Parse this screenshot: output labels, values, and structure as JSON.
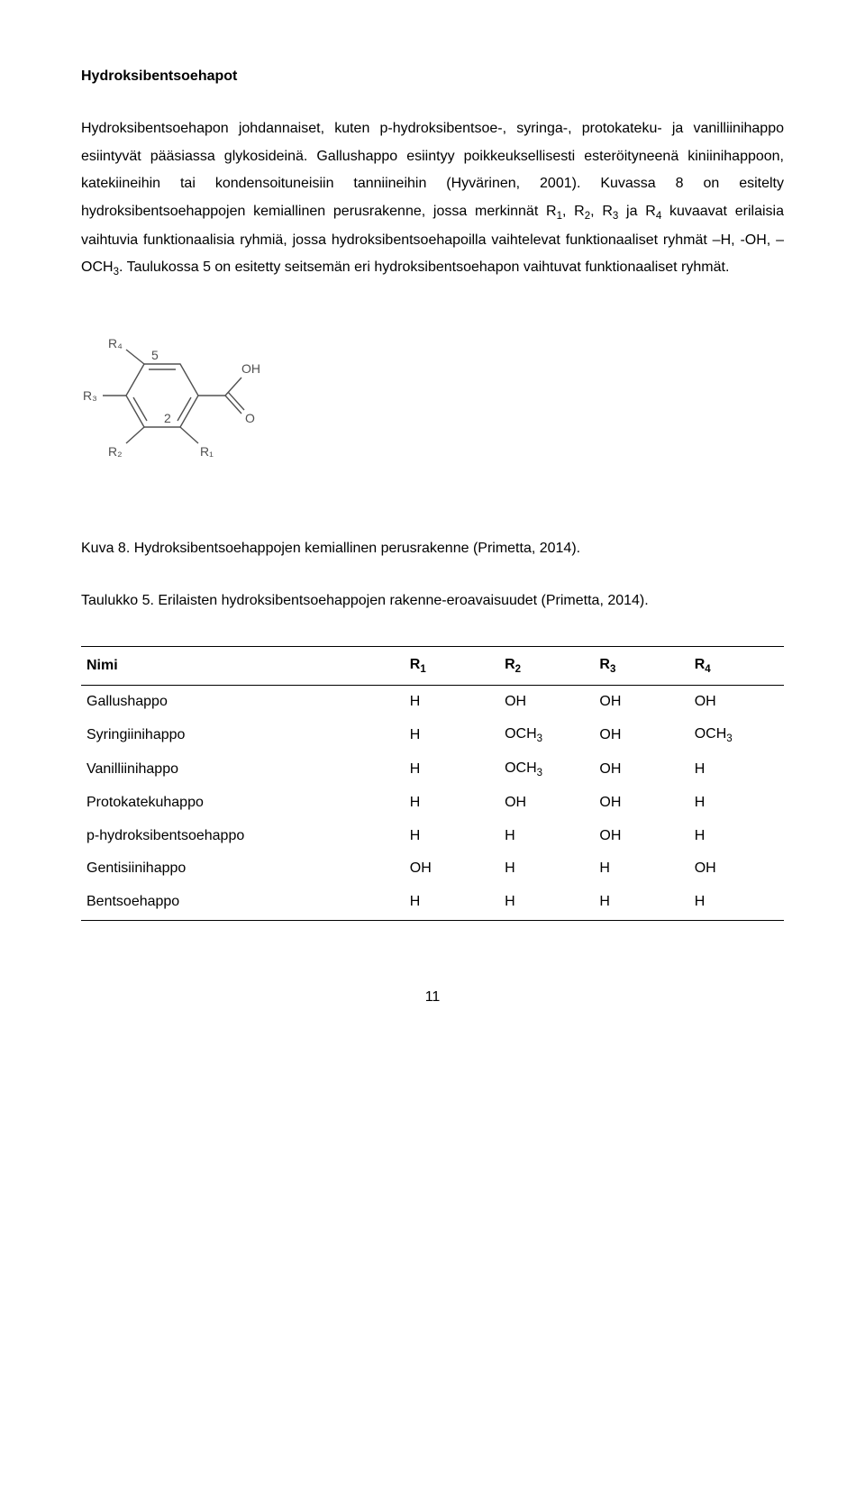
{
  "section_title": "Hydroksibentsoehapot",
  "para1": "Hydroksibentsoehapon johdannaiset, kuten p-hydroksibentsoe-, syringa-, protokateku- ja vanilliinihappo esiintyvät pääsiassa glykosideinä. Gallushappo esiintyy poikkeuksellisesti esteröityneenä kiniinihappoon, katekiineihin tai kondensoituneisiin tanniineihin (Hyvärinen, 2001). Kuvassa 8 on esitelty hydroksibentsoehappojen kemiallinen perusrakenne, jossa merkinnät R",
  "para1_after_r1": ", R",
  "para1_after_r2": ", R",
  "para1_after_r3": " ja R",
  "para1_after_r4": " kuvaavat erilaisia vaihtuvia funktionaalisia ryhmiä, jossa hydroksibentsoehapoilla vaihtelevat funktionaaliset ryhmät –H, -OH, –OCH",
  "para1_end": ". Taulukossa 5 on esitetty seitsemän eri hydroksibentsoehapon vaihtuvat funktionaaliset ryhmät.",
  "fig_caption": "Kuva 8. Hydroksibentsoehappojen kemiallinen perusrakenne (Primetta, 2014).",
  "table_caption_a": "Taulukko 5. Erilaisten hydroksibentsoehappojen rakenne-eroavaisuudet (Primetta, 2014).",
  "table": {
    "columns": [
      "Nimi",
      "R1",
      "R2",
      "R3",
      "R4"
    ],
    "rows": [
      [
        "Gallushappo",
        "H",
        "OH",
        "OH",
        "OH"
      ],
      [
        "Syringiinihappo",
        "H",
        "OCH3",
        "OH",
        "OCH3"
      ],
      [
        "Vanilliinihappo",
        "H",
        "OCH3",
        "OH",
        "H"
      ],
      [
        "Protokatekuhappo",
        "H",
        "OH",
        "OH",
        "H"
      ],
      [
        "p-hydroksibentsoehappo",
        "H",
        "H",
        "OH",
        "H"
      ],
      [
        "Gentisiinihappo",
        "OH",
        "H",
        "H",
        "OH"
      ],
      [
        "Bentsoehappo",
        "H",
        "H",
        "H",
        "H"
      ]
    ]
  },
  "molecule": {
    "labels": {
      "R1": "R₁",
      "R2": "R₂",
      "R3": "R₃",
      "R4": "R₄",
      "n5": "5",
      "n2": "2",
      "OH": "OH",
      "O": "O"
    },
    "stroke": "#505050",
    "text_color": "#505050"
  },
  "page_number": "11"
}
